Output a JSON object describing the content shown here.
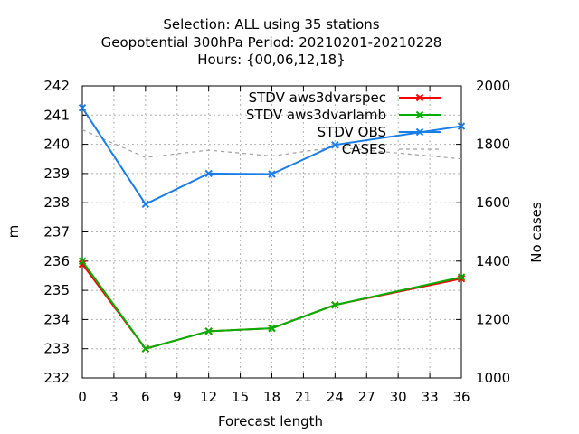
{
  "chart_data": {
    "type": "line",
    "title_lines": [
      "Selection: ALL using    35 stations",
      "Geopotential 300hPa   Period: 20210201-20210228",
      "Hours: {00,06,12,18}"
    ],
    "xlabel": "Forecast length",
    "ylabel": "m",
    "y2label": "No cases",
    "xlim": [
      0,
      36
    ],
    "ylim": [
      232,
      242
    ],
    "y2lim": [
      1000,
      2000
    ],
    "xticks": [
      0,
      3,
      6,
      9,
      12,
      15,
      18,
      21,
      24,
      27,
      30,
      33,
      36
    ],
    "yticks": [
      232,
      233,
      234,
      235,
      236,
      237,
      238,
      239,
      240,
      241,
      242
    ],
    "y2ticks": [
      1000,
      1200,
      1400,
      1600,
      1800,
      2000
    ],
    "grid": true,
    "legend_position": "top-right",
    "series": [
      {
        "name": "STDV aws3dvarspec",
        "color": "#ff0000",
        "axis": "y1",
        "marker": "x",
        "x": [
          0,
          6,
          12,
          18,
          24,
          36
        ],
        "values": [
          235.9,
          233.0,
          233.6,
          233.7,
          234.5,
          235.4
        ]
      },
      {
        "name": "STDV aws3dvarlamb",
        "color": "#00b000",
        "axis": "y1",
        "marker": "x",
        "x": [
          0,
          6,
          12,
          18,
          24,
          36
        ],
        "values": [
          236.0,
          233.0,
          233.6,
          233.7,
          234.5,
          235.45
        ]
      },
      {
        "name": "STDV OBS",
        "color": "#1a7ee6",
        "axis": "y1",
        "marker": "x",
        "x": [
          0,
          6,
          12,
          18,
          24,
          36
        ],
        "values": [
          241.25,
          237.95,
          239.0,
          238.98,
          239.98,
          240.62
        ]
      },
      {
        "name": "CASES",
        "color": "#a0a0a0",
        "axis": "y2",
        "dashed": true,
        "x": [
          0,
          6,
          12,
          18,
          24,
          36
        ],
        "values": [
          1850,
          1755,
          1780,
          1760,
          1790,
          1750
        ]
      }
    ]
  }
}
